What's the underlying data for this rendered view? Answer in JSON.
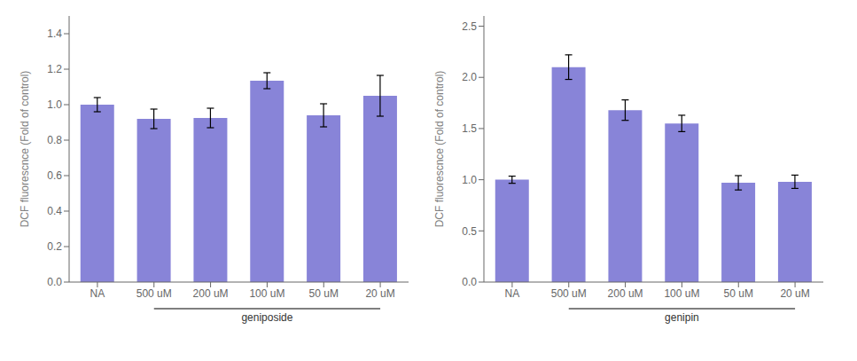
{
  "chart_data": [
    {
      "type": "bar",
      "categories": [
        "NA",
        "500 uM",
        "200 uM",
        "100 uM",
        "50 uM",
        "20 uM"
      ],
      "values": [
        1.0,
        0.92,
        0.925,
        1.135,
        0.94,
        1.05
      ],
      "errors": [
        0.04,
        0.055,
        0.055,
        0.045,
        0.065,
        0.115
      ],
      "y_label": "DCF fluorescnce (Fold of control)",
      "annotations": [
        {
          "text": "geniposide",
          "from": "500 uM",
          "to": "20 uM"
        }
      ],
      "color": "#8884d8",
      "ylim": [
        0,
        1.5
      ],
      "yticks": [
        {
          "value": 0.0,
          "label": "0.0"
        },
        0.2,
        0.4,
        0.6,
        0.8,
        {
          "value": 1.0,
          "label": "1.0"
        },
        1.2,
        1.4
      ]
    },
    {
      "type": "bar",
      "categories": [
        "NA",
        "500 uM",
        "200 uM",
        "100 uM",
        "50 uM",
        "20 uM"
      ],
      "values": [
        1.0,
        2.1,
        1.68,
        1.55,
        0.97,
        0.98
      ],
      "errors": [
        0.035,
        0.12,
        0.1,
        0.08,
        0.07,
        0.065
      ],
      "y_label": "DCF fluorescnce (Fold of control)",
      "annotations": [
        {
          "text": "genipin",
          "from": "500 uM",
          "to": "20 uM"
        }
      ],
      "color": "#8884d8",
      "ylim": [
        0,
        2.6
      ],
      "yticks": [
        {
          "value": 0.0,
          "label": "0.0"
        },
        0.5,
        {
          "value": 1.0,
          "label": "1.0"
        },
        1.5,
        {
          "value": 2.0,
          "label": "2.0"
        },
        2.5
      ]
    }
  ]
}
